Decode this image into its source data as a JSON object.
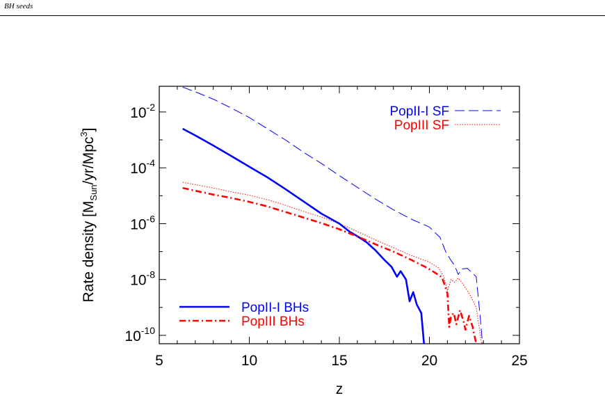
{
  "running_head": "BH seeds",
  "chart_data": {
    "type": "line",
    "title": "",
    "xlabel": "z",
    "ylabel_main": "Rate density  [M",
    "ylabel_sub": "Sun",
    "ylabel_mid": "/yr/Mpc",
    "ylabel_sup": "3",
    "ylabel_end": "]",
    "xlim": [
      5,
      25
    ],
    "ylim_log10": [
      -10.3,
      -1.08
    ],
    "yscale": "log",
    "grid": false,
    "legend_placement_top": "top-right",
    "legend_placement_bottom": "bottom-left",
    "x_ticks": [
      {
        "value": 5,
        "label": "5"
      },
      {
        "value": 10,
        "label": "10"
      },
      {
        "value": 15,
        "label": "15"
      },
      {
        "value": 20,
        "label": "20"
      },
      {
        "value": 25,
        "label": "25"
      }
    ],
    "y_ticks": [
      {
        "value_log10": -2,
        "base": "10",
        "exp": "-2"
      },
      {
        "value_log10": -4,
        "base": "10",
        "exp": "-4"
      },
      {
        "value_log10": -6,
        "base": "10",
        "exp": "-6"
      },
      {
        "value_log10": -8,
        "base": "10",
        "exp": "-8"
      },
      {
        "value_log10": -10,
        "base": "10",
        "exp": "-10"
      }
    ],
    "series": [
      {
        "name": "PopII-I SF",
        "color": "#0000ff",
        "style": "dashed",
        "legend": "top",
        "points": [
          [
            6.3,
            -1.11
          ],
          [
            7,
            -1.28
          ],
          [
            8,
            -1.54
          ],
          [
            9,
            -1.86
          ],
          [
            10,
            -2.2
          ],
          [
            11,
            -2.6
          ],
          [
            12,
            -3.0
          ],
          [
            13,
            -3.44
          ],
          [
            14,
            -3.84
          ],
          [
            15,
            -4.28
          ],
          [
            16,
            -4.7
          ],
          [
            17,
            -5.12
          ],
          [
            18,
            -5.5
          ],
          [
            19,
            -5.84
          ],
          [
            20,
            -6.12
          ],
          [
            20.6,
            -6.5
          ],
          [
            20.9,
            -7.0
          ],
          [
            21.2,
            -7.32
          ],
          [
            21.4,
            -7.5
          ],
          [
            21.6,
            -7.82
          ],
          [
            21.8,
            -7.62
          ],
          [
            22.1,
            -7.6
          ],
          [
            22.6,
            -7.9
          ],
          [
            22.8,
            -9.2
          ],
          [
            22.95,
            -10.3
          ]
        ]
      },
      {
        "name": "PopIII SF",
        "color": "#ff0000",
        "style": "dotted",
        "legend": "top",
        "points": [
          [
            6.3,
            -4.52
          ],
          [
            7,
            -4.6
          ],
          [
            8,
            -4.72
          ],
          [
            9,
            -4.86
          ],
          [
            10,
            -4.98
          ],
          [
            11,
            -5.14
          ],
          [
            12,
            -5.34
          ],
          [
            13,
            -5.56
          ],
          [
            14,
            -5.76
          ],
          [
            15,
            -6.0
          ],
          [
            16,
            -6.28
          ],
          [
            17,
            -6.58
          ],
          [
            18,
            -6.86
          ],
          [
            19,
            -7.14
          ],
          [
            20,
            -7.38
          ],
          [
            20.5,
            -7.58
          ],
          [
            20.8,
            -7.9
          ],
          [
            21.0,
            -8.4
          ],
          [
            21.2,
            -8.0
          ],
          [
            21.4,
            -8.1
          ],
          [
            21.6,
            -7.95
          ],
          [
            21.8,
            -8.1
          ],
          [
            22.0,
            -8.3
          ],
          [
            22.3,
            -8.6
          ],
          [
            22.6,
            -9.0
          ],
          [
            22.9,
            -10.3
          ]
        ]
      },
      {
        "name": "PopII-I BHs",
        "color": "#0000ff",
        "style": "solid",
        "legend": "bottom",
        "points": [
          [
            6.3,
            -2.6
          ],
          [
            7,
            -2.84
          ],
          [
            8,
            -3.2
          ],
          [
            9,
            -3.58
          ],
          [
            10,
            -3.96
          ],
          [
            11,
            -4.34
          ],
          [
            12,
            -4.76
          ],
          [
            13,
            -5.2
          ],
          [
            14,
            -5.64
          ],
          [
            15,
            -6.0
          ],
          [
            15.6,
            -6.3
          ],
          [
            16,
            -6.45
          ],
          [
            16.5,
            -6.66
          ],
          [
            17,
            -6.95
          ],
          [
            17.5,
            -7.3
          ],
          [
            17.9,
            -7.55
          ],
          [
            18.2,
            -7.9
          ],
          [
            18.4,
            -7.7
          ],
          [
            18.7,
            -8.0
          ],
          [
            18.9,
            -8.78
          ],
          [
            19.1,
            -8.45
          ],
          [
            19.3,
            -8.9
          ],
          [
            19.55,
            -9.2
          ],
          [
            19.7,
            -10.3
          ]
        ]
      },
      {
        "name": "PopIII BHs",
        "color": "#ff0000",
        "style": "dashdot",
        "legend": "bottom",
        "points": [
          [
            6.3,
            -4.72
          ],
          [
            7,
            -4.82
          ],
          [
            8,
            -4.96
          ],
          [
            9,
            -5.08
          ],
          [
            10,
            -5.22
          ],
          [
            11,
            -5.38
          ],
          [
            12,
            -5.58
          ],
          [
            13,
            -5.78
          ],
          [
            14,
            -5.98
          ],
          [
            15,
            -6.2
          ],
          [
            16,
            -6.46
          ],
          [
            17,
            -6.74
          ],
          [
            18,
            -7.0
          ],
          [
            19,
            -7.3
          ],
          [
            19.8,
            -7.56
          ],
          [
            20.3,
            -7.75
          ],
          [
            20.7,
            -7.92
          ],
          [
            21.0,
            -8.5
          ],
          [
            21.1,
            -9.7
          ],
          [
            21.2,
            -9.3
          ],
          [
            21.35,
            -9.2
          ],
          [
            21.5,
            -9.6
          ],
          [
            21.7,
            -9.1
          ],
          [
            21.9,
            -9.5
          ],
          [
            22.0,
            -9.8
          ],
          [
            22.2,
            -9.3
          ],
          [
            22.4,
            -9.7
          ],
          [
            22.6,
            -10.3
          ]
        ]
      }
    ]
  }
}
